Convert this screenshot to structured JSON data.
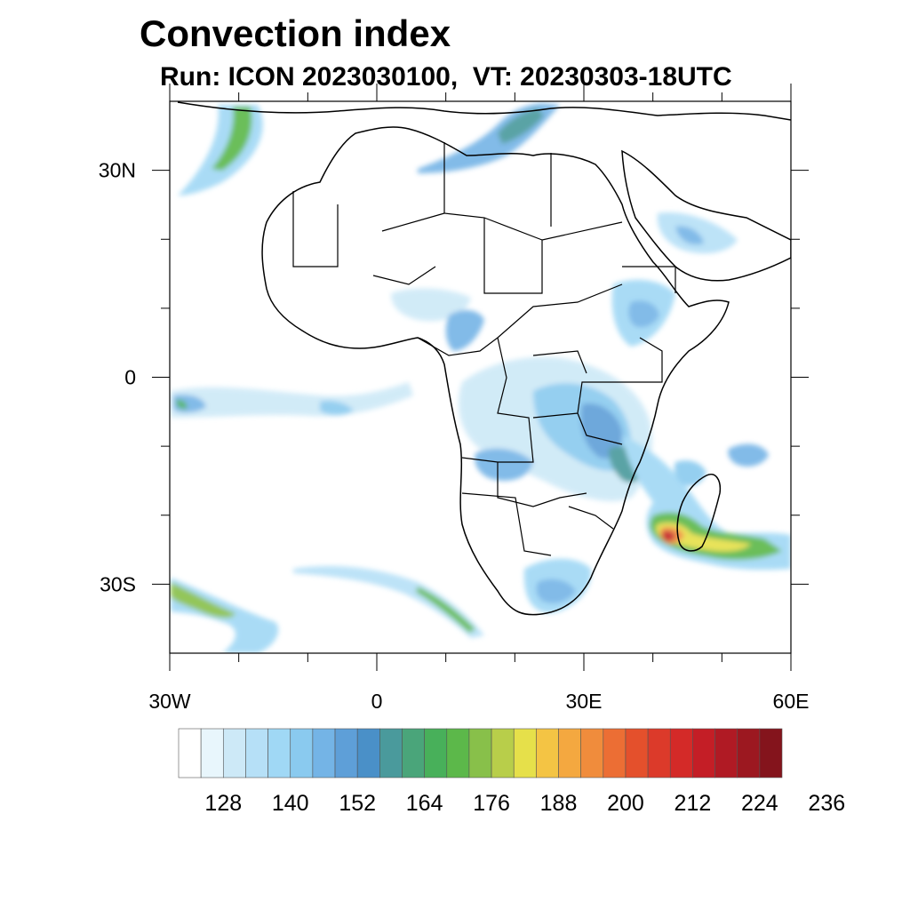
{
  "title": "Convection index",
  "subtitle": "Run: ICON 2023030100,  VT: 20230303-18UTC",
  "map": {
    "type": "filled contour map",
    "region": "Africa",
    "lon_range": [
      -30,
      60
    ],
    "lat_range": [
      -40,
      40
    ],
    "lat_ticks": [
      {
        "value": 30,
        "label": "30N"
      },
      {
        "value": 0,
        "label": "0"
      },
      {
        "value": -30,
        "label": "30S"
      }
    ],
    "lon_ticks": [
      {
        "value": -30,
        "label": "30W"
      },
      {
        "value": 0,
        "label": "0"
      },
      {
        "value": 30,
        "label": "30E"
      },
      {
        "value": 60,
        "label": "60E"
      }
    ]
  },
  "colorbar": {
    "colors": [
      "#ffffff",
      "#e8f6fc",
      "#cde9f7",
      "#b6e0f7",
      "#a0d8f5",
      "#8acaef",
      "#74b4e6",
      "#5e9fd8",
      "#4a90c8",
      "#4a9a9c",
      "#4aa57a",
      "#48b05a",
      "#5cb84a",
      "#88c04a",
      "#b8ce4a",
      "#e6e04a",
      "#f4c444",
      "#f4a840",
      "#f08c3c",
      "#ec6e34",
      "#e4502c",
      "#dc3a2a",
      "#d42a28",
      "#c41e26",
      "#b01a24",
      "#9c1820",
      "#84141c"
    ],
    "labels": [
      "128",
      "140",
      "152",
      "164",
      "176",
      "188",
      "200",
      "212",
      "224",
      "236"
    ]
  }
}
